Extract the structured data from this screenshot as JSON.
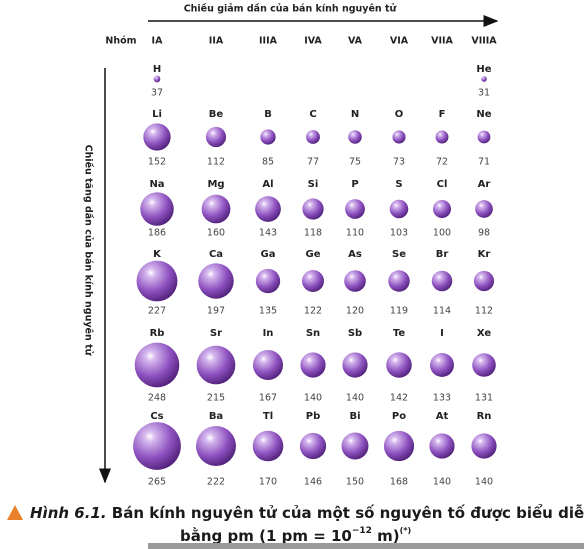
{
  "top_arrow_label": "Chiều giảm dần của bán kính nguyên tử",
  "side_arrow_label": "Chiều tăng dần của bán kính nguyên tử",
  "group_header": "Nhóm",
  "groups": [
    "IA",
    "IIA",
    "IIIA",
    "IVA",
    "VA",
    "VIA",
    "VIIA",
    "VIIIA"
  ],
  "periods": [
    {
      "symbols": [
        "H",
        null,
        null,
        null,
        null,
        null,
        null,
        "He"
      ],
      "radii": [
        37,
        null,
        null,
        null,
        null,
        null,
        null,
        31
      ]
    },
    {
      "symbols": [
        "Li",
        "Be",
        "B",
        "C",
        "N",
        "O",
        "F",
        "Ne"
      ],
      "radii": [
        152,
        112,
        85,
        77,
        75,
        73,
        72,
        71
      ]
    },
    {
      "symbols": [
        "Na",
        "Mg",
        "Al",
        "Si",
        "P",
        "S",
        "Cl",
        "Ar"
      ],
      "radii": [
        186,
        160,
        143,
        118,
        110,
        103,
        100,
        98
      ]
    },
    {
      "symbols": [
        "K",
        "Ca",
        "Ga",
        "Ge",
        "As",
        "Se",
        "Br",
        "Kr"
      ],
      "radii": [
        227,
        197,
        135,
        122,
        120,
        119,
        114,
        112
      ]
    },
    {
      "symbols": [
        "Rb",
        "Sr",
        "In",
        "Sn",
        "Sb",
        "Te",
        "I",
        "Xe"
      ],
      "radii": [
        248,
        215,
        167,
        140,
        140,
        142,
        133,
        131
      ]
    },
    {
      "symbols": [
        "Cs",
        "Ba",
        "Tl",
        "Pb",
        "Bi",
        "Po",
        "At",
        "Rn"
      ],
      "radii": [
        265,
        222,
        170,
        146,
        150,
        168,
        140,
        140
      ]
    }
  ],
  "caption": {
    "label": "Hình 6.1.",
    "line1": "Bán kính nguyên tử của một số nguyên tố được biểu diễn",
    "line2_start": "bằng pm (1 pm = 10",
    "exponent": "−12",
    "line2_end": " m)",
    "note": "(*)"
  }
}
